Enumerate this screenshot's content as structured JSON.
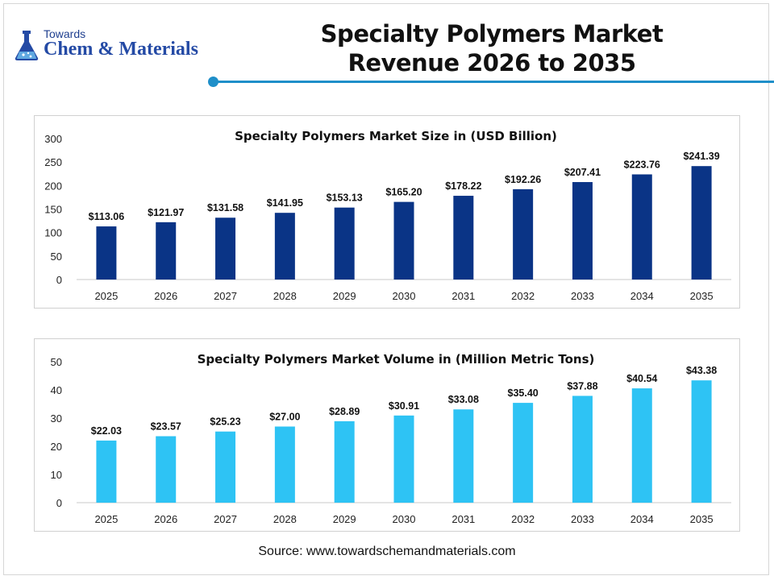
{
  "header": {
    "logo_small": "Towards",
    "logo_big": "Chem & Materials",
    "title_line1": "Specialty Polymers Market",
    "title_line2": "Revenue 2026 to 2035"
  },
  "colors": {
    "accent": "#1f8fc9",
    "logo": "#244aa5",
    "bar_revenue": "#0a3486",
    "bar_volume": "#2ec3f4"
  },
  "chart_data": [
    {
      "type": "bar",
      "title": "Specialty Polymers Market Size in (USD Billion)",
      "categories": [
        "2025",
        "2026",
        "2027",
        "2028",
        "2029",
        "2030",
        "2031",
        "2032",
        "2033",
        "2034",
        "2035"
      ],
      "values": [
        113.06,
        121.97,
        131.58,
        141.95,
        153.13,
        165.2,
        178.22,
        192.26,
        207.41,
        223.76,
        241.39
      ],
      "data_labels": [
        "$113.06",
        "$121.97",
        "$131.58",
        "$141.95",
        "$153.13",
        "$165.20",
        "$178.22",
        "$192.26",
        "$207.41",
        "$223.76",
        "$241.39"
      ],
      "ylim": [
        0,
        300
      ],
      "yticks": [
        "0",
        "50",
        "100",
        "150",
        "200",
        "250",
        "300"
      ],
      "grid": false,
      "legend": "none",
      "color": "#0a3486"
    },
    {
      "type": "bar",
      "title": "Specialty Polymers Market Volume in (Million Metric Tons)",
      "categories": [
        "2025",
        "2026",
        "2027",
        "2028",
        "2029",
        "2030",
        "2031",
        "2032",
        "2033",
        "2034",
        "2035"
      ],
      "values": [
        22.03,
        23.57,
        25.23,
        27.0,
        28.89,
        30.91,
        33.08,
        35.4,
        37.88,
        40.54,
        43.38
      ],
      "data_labels": [
        "$22.03",
        "$23.57",
        "$25.23",
        "$27.00",
        "$28.89",
        "$30.91",
        "$33.08",
        "$35.40",
        "$37.88",
        "$40.54",
        "$43.38"
      ],
      "ylim": [
        0,
        50
      ],
      "yticks": [
        "0",
        "10",
        "20",
        "30",
        "40",
        "50"
      ],
      "grid": false,
      "legend": "none",
      "color": "#2ec3f4"
    }
  ],
  "footer": {
    "source": "Source: www.towardschemandmaterials.com"
  }
}
